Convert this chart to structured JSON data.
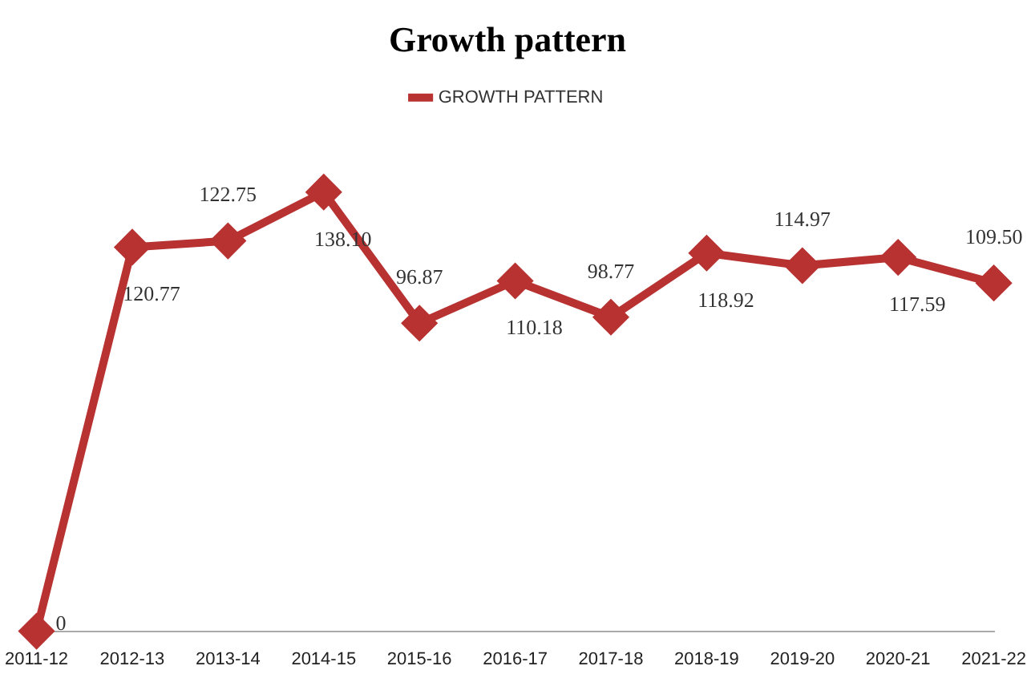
{
  "chart_data": {
    "type": "line",
    "title": "Growth pattern",
    "categories": [
      "2011-12",
      "2012-13",
      "2013-14",
      "2014-15",
      "2015-16",
      "2016-17",
      "2017-18",
      "2018-19",
      "2019-20",
      "2020-21",
      "2021-22"
    ],
    "series": [
      {
        "name": "GROWTH PATTERN",
        "color": "#b83232",
        "values": [
          0,
          120.77,
          122.75,
          138.1,
          96.87,
          110.18,
          98.77,
          118.92,
          114.97,
          117.59,
          109.5
        ],
        "value_labels": [
          "0",
          "120.77",
          "122.75",
          "138.10",
          "96.87",
          "110.18",
          "98.77",
          "118.92",
          "114.97",
          "117.59",
          "109.50"
        ]
      }
    ],
    "legend": "top",
    "marker": "diamond",
    "line_style": "solid",
    "grid": false,
    "tick_labels": "x"
  }
}
